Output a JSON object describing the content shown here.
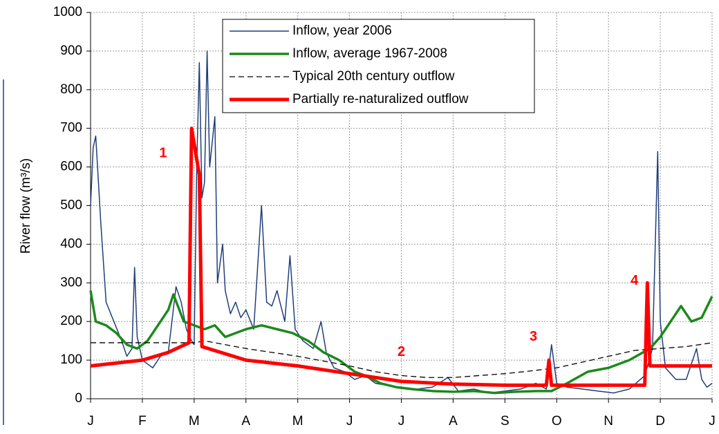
{
  "chart_data": {
    "type": "line",
    "y_label": "River flow (m³/s)",
    "xlim": [
      0,
      12
    ],
    "xticks": [
      {
        "value": 0,
        "label": "J"
      },
      {
        "value": 1,
        "label": "F"
      },
      {
        "value": 2,
        "label": "M"
      },
      {
        "value": 3,
        "label": "A"
      },
      {
        "value": 4,
        "label": "M"
      },
      {
        "value": 5,
        "label": "J"
      },
      {
        "value": 6,
        "label": "J"
      },
      {
        "value": 7,
        "label": "A"
      },
      {
        "value": 8,
        "label": "S"
      },
      {
        "value": 9,
        "label": "O"
      },
      {
        "value": 10,
        "label": "N"
      },
      {
        "value": 11,
        "label": "D"
      },
      {
        "value": 12,
        "label": "J"
      }
    ],
    "ylim": [
      0,
      1000
    ],
    "yticks": [
      0,
      100,
      200,
      300,
      400,
      500,
      600,
      700,
      800,
      900,
      1000
    ],
    "grid": true,
    "series": [
      {
        "name": "Inflow, year 2006",
        "color": "#1f3d7a",
        "width": 1.5,
        "dash": false,
        "x": [
          0,
          0.05,
          0.1,
          0.2,
          0.3,
          0.45,
          0.6,
          0.7,
          0.8,
          0.85,
          0.9,
          1.0,
          1.1,
          1.2,
          1.35,
          1.5,
          1.65,
          1.75,
          1.85,
          1.95,
          2.0,
          2.05,
          2.1,
          2.15,
          2.2,
          2.25,
          2.3,
          2.4,
          2.45,
          2.5,
          2.55,
          2.6,
          2.7,
          2.8,
          2.9,
          3.0,
          3.15,
          3.3,
          3.4,
          3.5,
          3.6,
          3.75,
          3.85,
          3.95,
          4.1,
          4.3,
          4.45,
          4.55,
          4.7,
          4.9,
          5.1,
          5.3,
          5.5,
          5.7,
          6.0,
          6.3,
          6.6,
          6.9,
          7.1,
          7.4,
          7.7,
          8.0,
          8.3,
          8.6,
          8.8,
          8.9,
          9.0,
          9.2,
          9.5,
          9.8,
          10.1,
          10.4,
          10.7,
          10.85,
          10.95,
          11.0,
          11.1,
          11.3,
          11.5,
          11.7,
          11.8,
          11.9,
          12.0
        ],
        "values": [
          500,
          650,
          680,
          450,
          250,
          200,
          150,
          110,
          130,
          340,
          160,
          100,
          90,
          80,
          110,
          120,
          290,
          250,
          180,
          150,
          140,
          600,
          870,
          520,
          560,
          900,
          600,
          730,
          300,
          350,
          400,
          280,
          220,
          250,
          210,
          230,
          180,
          500,
          250,
          240,
          280,
          200,
          370,
          180,
          150,
          130,
          200,
          120,
          80,
          70,
          50,
          60,
          40,
          35,
          30,
          25,
          30,
          55,
          20,
          25,
          15,
          20,
          25,
          40,
          25,
          140,
          40,
          30,
          25,
          20,
          15,
          25,
          60,
          130,
          640,
          200,
          80,
          50,
          50,
          130,
          50,
          30,
          40
        ]
      },
      {
        "name": "Inflow, average 1967-2008",
        "color": "#1a8a1a",
        "width": 3.5,
        "dash": false,
        "x": [
          0,
          0.1,
          0.3,
          0.5,
          0.7,
          0.9,
          1.1,
          1.3,
          1.5,
          1.6,
          1.8,
          2.0,
          2.2,
          2.4,
          2.6,
          2.8,
          3.0,
          3.3,
          3.6,
          3.9,
          4.2,
          4.5,
          4.8,
          5.1,
          5.3,
          5.6,
          5.9,
          6.2,
          6.6,
          7.0,
          7.4,
          7.8,
          8.2,
          8.6,
          8.9,
          9.2,
          9.6,
          10.0,
          10.4,
          10.8,
          11.0,
          11.2,
          11.4,
          11.6,
          11.8,
          12.0
        ],
        "values": [
          280,
          200,
          190,
          170,
          140,
          130,
          150,
          190,
          230,
          270,
          200,
          190,
          180,
          190,
          160,
          170,
          180,
          190,
          180,
          170,
          150,
          120,
          100,
          70,
          60,
          40,
          30,
          25,
          20,
          18,
          20,
          15,
          18,
          20,
          20,
          40,
          70,
          80,
          100,
          130,
          160,
          200,
          240,
          200,
          210,
          265
        ]
      },
      {
        "name": "Typical 20th century outflow",
        "color": "#000000",
        "width": 1.3,
        "dash": true,
        "x": [
          0,
          2.0,
          2.2,
          3,
          4,
          5,
          5.5,
          6,
          6.5,
          7,
          7.5,
          8,
          8.5,
          9,
          9.5,
          10,
          10.5,
          11,
          11.5,
          12
        ],
        "values": [
          145,
          145,
          150,
          130,
          110,
          85,
          70,
          60,
          55,
          55,
          60,
          65,
          72,
          80,
          95,
          110,
          125,
          130,
          135,
          145
        ]
      },
      {
        "name": "Partially re-naturalized outflow",
        "color": "#ff0000",
        "width": 5,
        "dash": false,
        "x": [
          0,
          1,
          1.5,
          1.9,
          1.95,
          2.1,
          2.15,
          3,
          4,
          5,
          6,
          7,
          8,
          8.8,
          8.85,
          8.9,
          10.7,
          10.75,
          10.8,
          12
        ],
        "values": [
          85,
          100,
          120,
          145,
          700,
          580,
          135,
          100,
          85,
          65,
          45,
          38,
          35,
          35,
          100,
          35,
          35,
          300,
          85,
          85
        ]
      }
    ],
    "annotations": [
      {
        "text": "1",
        "x": 1.4,
        "y": 635
      },
      {
        "text": "2",
        "x": 6.0,
        "y": 120
      },
      {
        "text": "3",
        "x": 8.55,
        "y": 160
      },
      {
        "text": "4",
        "x": 10.5,
        "y": 305
      }
    ]
  }
}
